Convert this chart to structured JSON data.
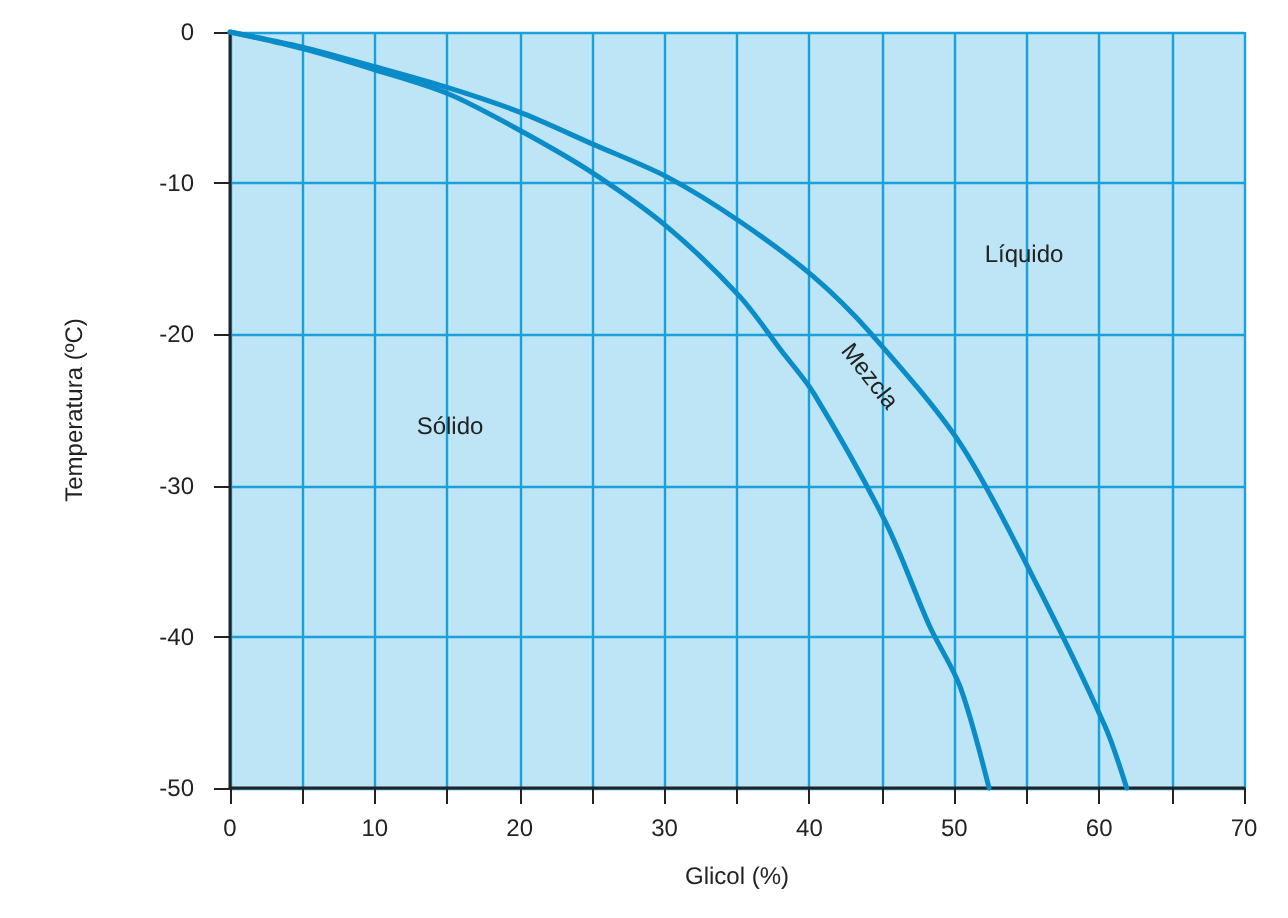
{
  "chart_data": {
    "type": "line",
    "xlabel": "Glicol (%)",
    "ylabel": "Temperatura (ºC)",
    "series": [
      {
        "color": "#0a8cc8",
        "x": [
          0,
          5,
          10,
          15.1,
          20,
          25,
          30.2,
          35.3,
          40.3,
          44.3,
          50.4,
          55.3,
          60.4,
          61.9
        ],
        "values": [
          0,
          -1,
          -2.3,
          -3.7,
          -5.3,
          -7.4,
          -9.6,
          -12.6,
          -16.2,
          -20,
          -27.2,
          -35.8,
          -45.9,
          -50
        ]
      },
      {
        "color": "#0a8cc8",
        "x": [
          0,
          5,
          10,
          15.1,
          20,
          25,
          30.2,
          35.2,
          38,
          40.3,
          45.3,
          48.3,
          50.4,
          52.4
        ],
        "values": [
          0,
          -1.1,
          -2.5,
          -4.1,
          -6.5,
          -9.3,
          -12.9,
          -17.5,
          -21,
          -23.9,
          -32.5,
          -39.3,
          -43.3,
          -50
        ]
      }
    ],
    "xlim": [
      0,
      70
    ],
    "ylim": [
      -50,
      0
    ],
    "xticks": [
      0,
      {
        "value": 5,
        "label": null
      },
      10,
      {
        "value": 15,
        "label": null
      },
      20,
      {
        "value": 25,
        "label": null
      },
      30,
      {
        "value": 35,
        "label": null
      },
      40,
      {
        "value": 45,
        "label": null
      },
      50,
      {
        "value": 55,
        "label": null
      },
      60,
      {
        "value": 65,
        "label": null
      },
      70
    ],
    "yticks": [
      -50,
      -40,
      -30,
      -20,
      -10,
      0
    ],
    "grid": true,
    "marker": "none",
    "line_style": "solid",
    "annotations": [
      "Sólido",
      "Líquido",
      "Mezcla"
    ]
  }
}
